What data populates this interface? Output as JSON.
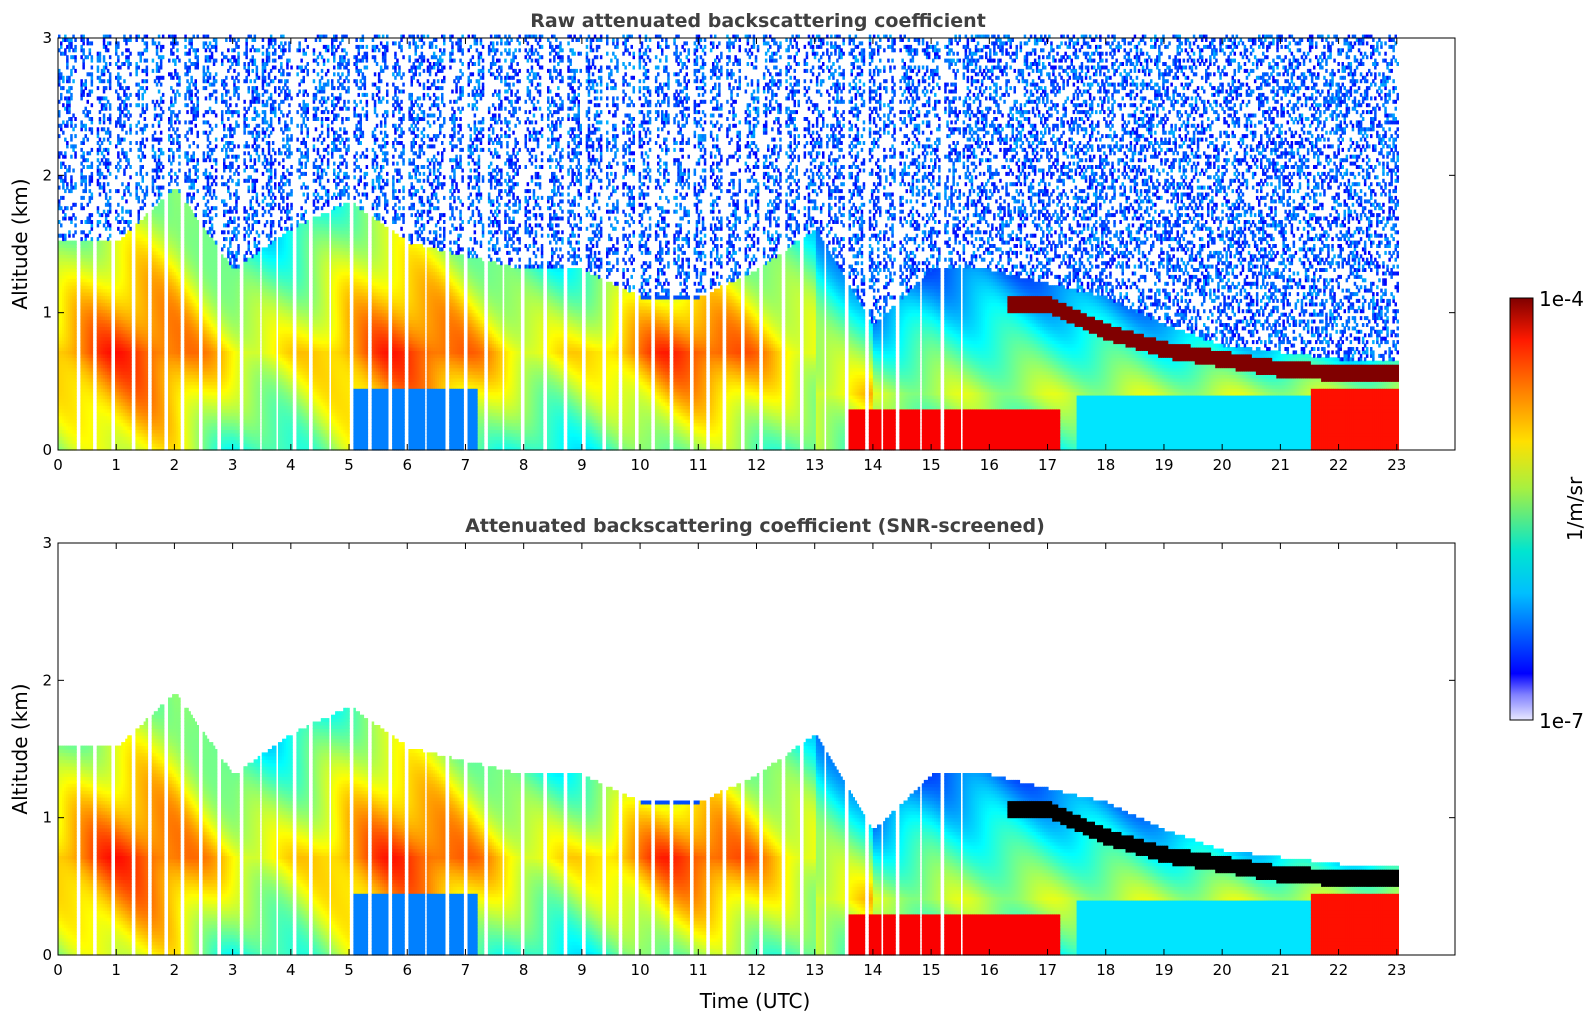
{
  "chart_data": [
    {
      "type": "heatmap",
      "title": "Raw attenuated backscattering coefficient",
      "xlabel": "",
      "ylabel": "Altitude (km)",
      "xlim": [
        0,
        24
      ],
      "ylim": [
        0,
        3
      ],
      "xticks": [
        "0",
        "1",
        "2",
        "3",
        "4",
        "5",
        "6",
        "7",
        "8",
        "9",
        "10",
        "11",
        "12",
        "13",
        "14",
        "15",
        "16",
        "17",
        "18",
        "19",
        "20",
        "21",
        "22",
        "23"
      ],
      "yticks": [
        "0",
        "1",
        "2",
        "3"
      ],
      "data_extent_hours": [
        0,
        23
      ],
      "screened": false,
      "aerosol_layer_top_km": [
        [
          0,
          1.5
        ],
        [
          1,
          1.5
        ],
        [
          2,
          1.9
        ],
        [
          3,
          1.3
        ],
        [
          4,
          1.6
        ],
        [
          5,
          1.8
        ],
        [
          6,
          1.5
        ],
        [
          7,
          1.4
        ],
        [
          8,
          1.3
        ],
        [
          9,
          1.3
        ],
        [
          10,
          1.1
        ],
        [
          11,
          1.1
        ],
        [
          12,
          1.3
        ],
        [
          13,
          1.6
        ],
        [
          14,
          0.9
        ],
        [
          15,
          1.3
        ],
        [
          16,
          1.3
        ],
        [
          17,
          1.2
        ],
        [
          18,
          1.1
        ],
        [
          19,
          0.9
        ],
        [
          20,
          0.75
        ],
        [
          21,
          0.7
        ],
        [
          22,
          0.65
        ],
        [
          23,
          0.65
        ]
      ],
      "cloud_layer_km": [
        [
          16.3,
          1.05
        ],
        [
          17,
          1.05
        ],
        [
          17.5,
          0.95
        ],
        [
          18,
          0.85
        ],
        [
          19,
          0.72
        ],
        [
          20,
          0.65
        ],
        [
          21,
          0.58
        ],
        [
          22,
          0.55
        ],
        [
          23,
          0.55
        ]
      ]
    },
    {
      "type": "heatmap",
      "title": "Attenuated backscattering coefficient (SNR-screened)",
      "xlabel": "Time (UTC)",
      "ylabel": "Altitude (km)",
      "xlim": [
        0,
        24
      ],
      "ylim": [
        0,
        3
      ],
      "xticks": [
        "0",
        "1",
        "2",
        "3",
        "4",
        "5",
        "6",
        "7",
        "8",
        "9",
        "10",
        "11",
        "12",
        "13",
        "14",
        "15",
        "16",
        "17",
        "18",
        "19",
        "20",
        "21",
        "22",
        "23"
      ],
      "yticks": [
        "0",
        "1",
        "2",
        "3"
      ],
      "data_extent_hours": [
        0,
        23
      ],
      "screened": true
    }
  ],
  "colorbar": {
    "label": "1/m/sr",
    "max_label": "1e-4",
    "min_label": "1e-7",
    "scale": "log",
    "range": [
      1e-07,
      0.0001
    ],
    "colormap": "jet"
  }
}
